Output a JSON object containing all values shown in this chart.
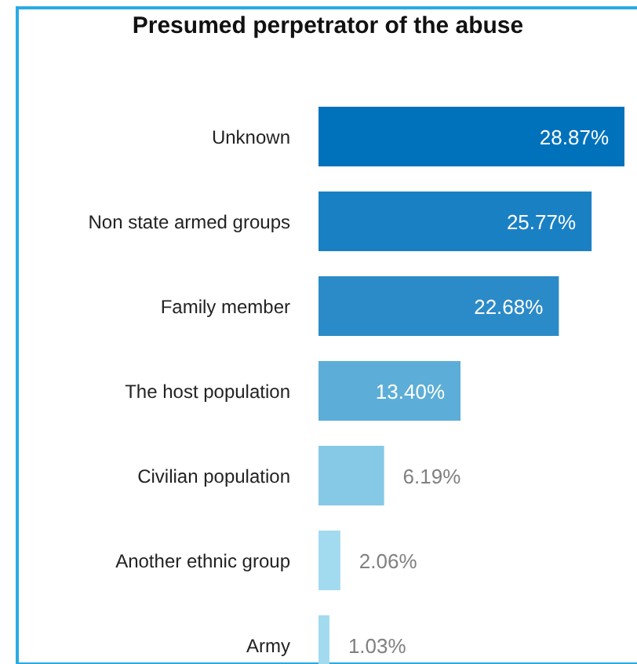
{
  "chart_data": {
    "type": "bar",
    "orientation": "horizontal",
    "title": "Presumed perpetrator of the abuse",
    "categories": [
      "Unknown",
      "Non state armed groups",
      "Family member",
      "The host population",
      "Civilian population",
      "Another ethnic group",
      "Army"
    ],
    "values": [
      28.87,
      25.77,
      22.68,
      13.4,
      6.19,
      2.06,
      1.03
    ],
    "value_labels": [
      "28.87%",
      "25.77%",
      "22.68%",
      "13.40%",
      "6.19%",
      "2.06%",
      "1.03%"
    ],
    "colors": [
      "#0072bc",
      "#1a80c4",
      "#2b8ac8",
      "#5caed8",
      "#86c9e6",
      "#a2daef",
      "#a2daef"
    ],
    "grid": false,
    "legend": false
  }
}
